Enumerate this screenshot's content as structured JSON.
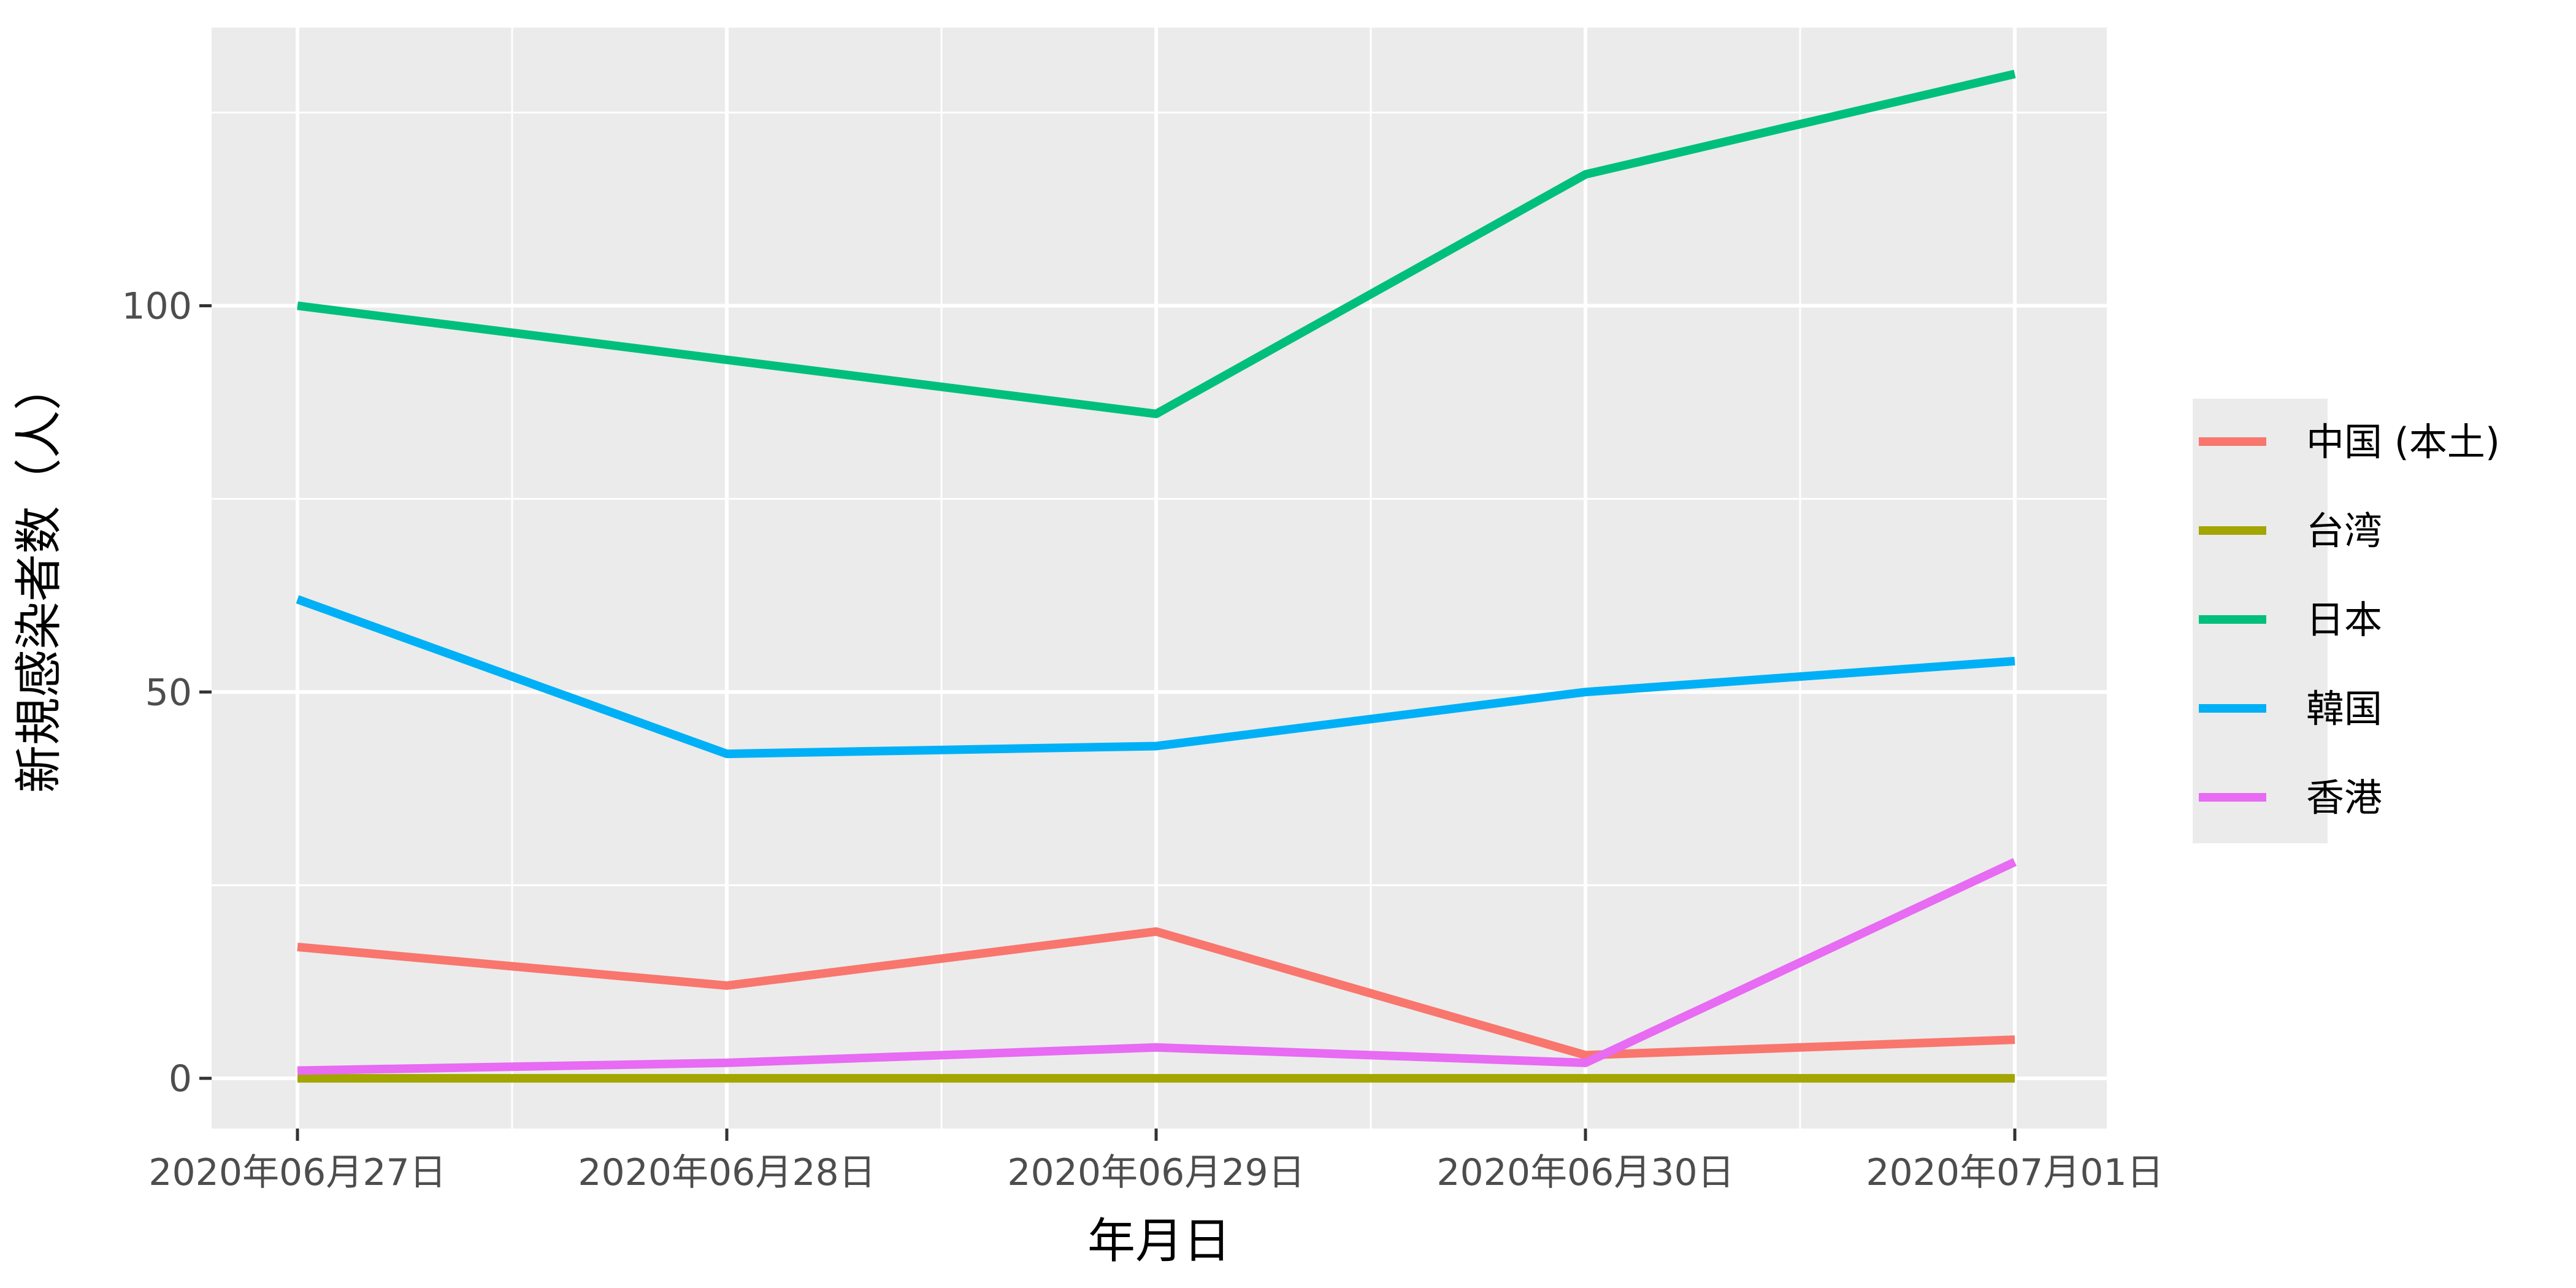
{
  "chart_data": {
    "type": "line",
    "xlabel": "年月日",
    "ylabel": "新規感染者数（人）",
    "categories": [
      "2020年06月27日",
      "2020年06月28日",
      "2020年06月29日",
      "2020年06月30日",
      "2020年07月01日"
    ],
    "ylim": [
      -6.5,
      136
    ],
    "yticks": [
      0,
      50,
      100
    ],
    "grid": true,
    "legend_position": "right",
    "series": [
      {
        "name": "中国 (本土)",
        "color": "#F8766D",
        "values": [
          17,
          12,
          19,
          3,
          5
        ]
      },
      {
        "name": "台湾",
        "color": "#A3A500",
        "values": [
          0,
          0,
          0,
          0,
          0
        ]
      },
      {
        "name": "日本",
        "color": "#00BF7D",
        "values": [
          100,
          93,
          86,
          117,
          130
        ]
      },
      {
        "name": "韓国",
        "color": "#00B0F6",
        "values": [
          62,
          42,
          43,
          50,
          54
        ]
      },
      {
        "name": "香港",
        "color": "#E76BF3",
        "values": [
          1,
          2,
          4,
          2,
          28
        ]
      }
    ]
  }
}
